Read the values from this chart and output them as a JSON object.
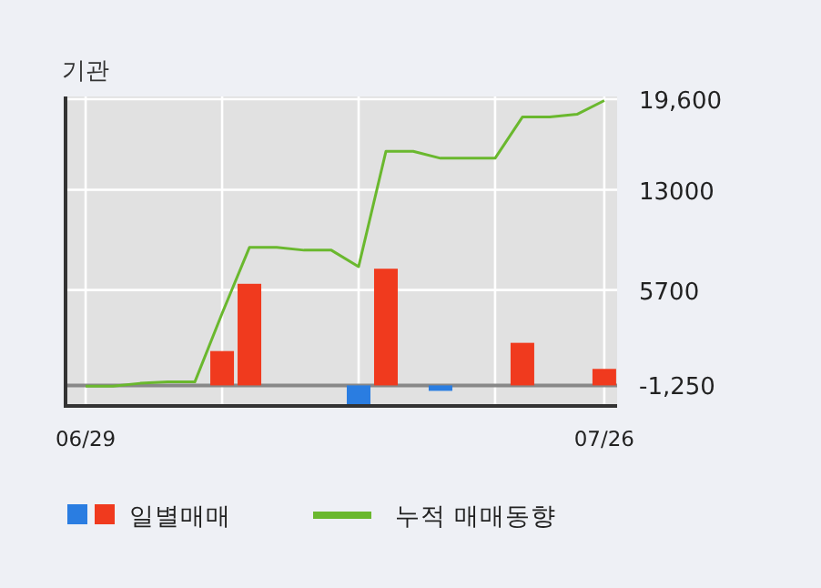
{
  "chart_data": {
    "type": "bar",
    "title": "기관",
    "categories": [
      "06/29",
      null,
      null,
      null,
      null,
      null,
      null,
      null,
      null,
      null,
      null,
      null,
      null,
      null,
      null,
      null,
      null,
      null,
      null,
      "07/26"
    ],
    "series": [
      {
        "name": "일별매매",
        "colors": [
          null,
          null,
          null,
          null,
          null,
          "#f03a1e",
          "#f03a1e",
          null,
          null,
          null,
          "#2a7de1",
          "#f03a1e",
          null,
          "#2a7de1",
          null,
          null,
          "#f03a1e",
          null,
          null,
          "#f03a1e"
        ],
        "base": [
          null,
          null,
          null,
          null,
          null,
          -1250,
          -1250,
          null,
          null,
          null,
          -1250,
          -1250,
          null,
          -1250,
          null,
          null,
          -1250,
          null,
          null,
          -1250
        ],
        "values": [
          null,
          null,
          null,
          null,
          null,
          2500,
          7400,
          null,
          null,
          null,
          -1400,
          8500,
          null,
          -400,
          null,
          null,
          3100,
          null,
          null,
          1200
        ]
      },
      {
        "type": "line",
        "name": "누적 매매동향",
        "color": "#6ab82e",
        "values": [
          -1300,
          -1300,
          -1100,
          -1000,
          -1000,
          4000,
          8800,
          8800,
          8600,
          8600,
          7400,
          15800,
          15800,
          15300,
          15300,
          15300,
          18300,
          18300,
          18500,
          19500
        ]
      }
    ],
    "ylim": [
      -2750,
      19800
    ],
    "yticks": [
      {
        "value": -1250,
        "label": "-1,250"
      },
      5700,
      13000,
      {
        "value": 19600,
        "label": "19,600"
      }
    ],
    "ref_lines": [
      {
        "axis": "y",
        "value": -1250,
        "color": "#888888"
      }
    ],
    "grid": true,
    "legend": "bottom"
  }
}
